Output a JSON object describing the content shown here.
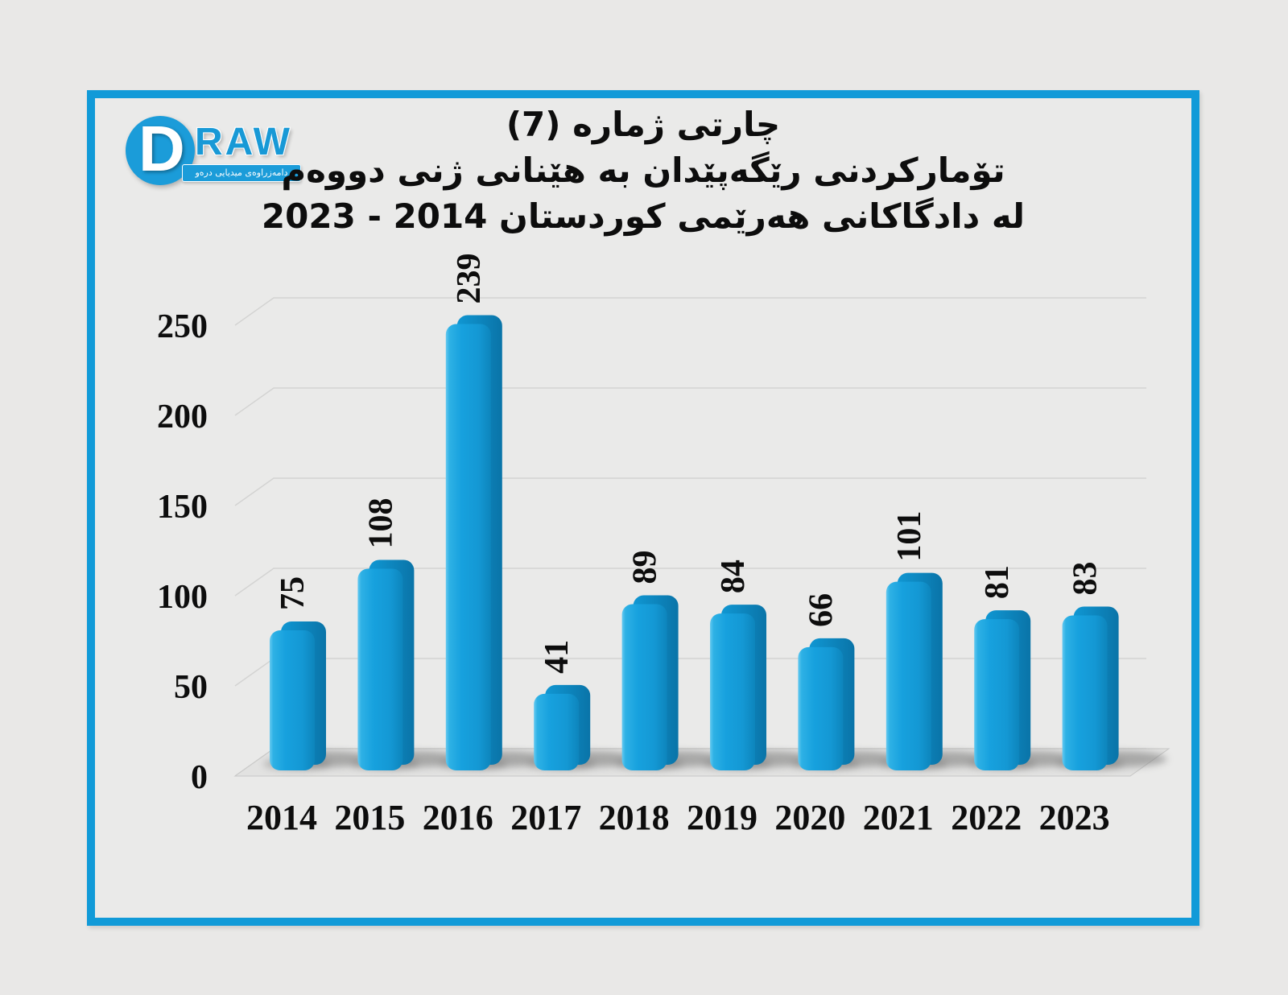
{
  "page": {
    "background": "#e9e8e7"
  },
  "frame": {
    "border_color": "#119ad8"
  },
  "logo": {
    "letter": "D",
    "wordmark": "RAW",
    "tagline": "دامەزراوەی میدیایی درەو",
    "brand_color": "#1b9cd9"
  },
  "title": {
    "line1": "چارتی ژماره (7)",
    "line2": "تۆمارکردنی رێگەپێدان بە هێنانی ژنی دووەم",
    "line3": "لە دادگاکانی هەرێمی کوردستان 2014 - 2023"
  },
  "chart_data": {
    "type": "bar",
    "style": "3d-column",
    "title": "چارتی ژماره (7) تۆمارکردنی رێگەپێدان بە هێنانی ژنی دووەم لە دادگاکانی هەرێمی کوردستان 2014 - 2023",
    "categories": [
      "2014",
      "2015",
      "2016",
      "2017",
      "2018",
      "2019",
      "2020",
      "2021",
      "2022",
      "2023"
    ],
    "values": [
      75,
      108,
      239,
      41,
      89,
      84,
      66,
      101,
      81,
      83
    ],
    "y_ticks": [
      0,
      50,
      100,
      150,
      200,
      250
    ],
    "ylim": [
      0,
      250
    ],
    "xlabel": "",
    "ylabel": "",
    "grid": true,
    "legend": false,
    "bar_color": "#17a1de",
    "bar_side_color": "#0d85bc",
    "label_color": "#0d0d0d",
    "value_label_rotation": -90
  }
}
